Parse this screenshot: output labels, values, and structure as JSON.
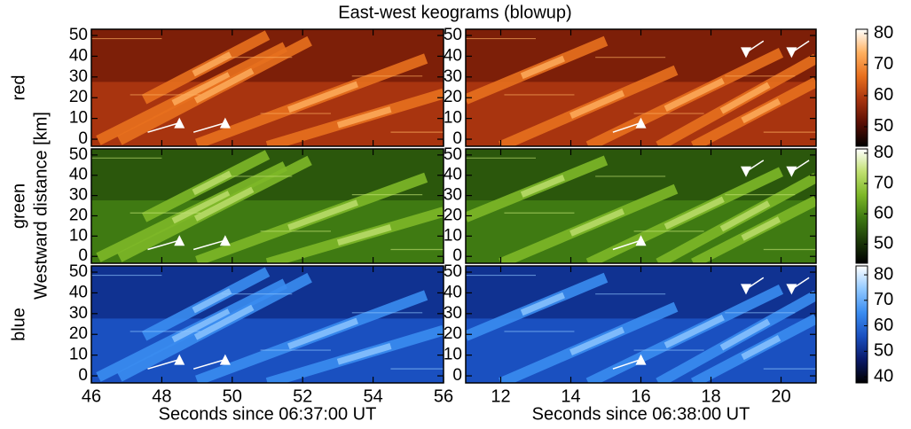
{
  "title": "East-west keograms (blowup)",
  "ylabel": "Westward distance [km]",
  "chart_data": [
    {
      "type": "keogram",
      "row_label": "red",
      "ylim": [
        -3.4,
        53
      ],
      "yticks": [
        0,
        10,
        20,
        30,
        40,
        50
      ]
    },
    {
      "type": "keogram",
      "ylim": [
        -3.4,
        53
      ],
      "yticks": [
        0,
        10,
        20,
        30,
        40,
        50
      ],
      "colorbar": {
        "lim": [
          43.7,
          81.4
        ],
        "ticks": [
          50,
          60,
          70,
          80
        ],
        "colormap": [
          "#000000",
          "#5a0e04",
          "#a8340f",
          "#e8701e",
          "#ffb060",
          "#ffffff"
        ]
      }
    },
    {
      "type": "keogram",
      "row_label": "green",
      "ylim": [
        -3.4,
        53
      ],
      "yticks": [
        0,
        10,
        20,
        30,
        40,
        50
      ]
    },
    {
      "type": "keogram",
      "ylim": [
        -3.4,
        53
      ],
      "yticks": [
        0,
        10,
        20,
        30,
        40,
        50
      ],
      "colorbar": {
        "lim": [
          43.7,
          81.4
        ],
        "ticks": [
          50,
          60,
          70,
          80
        ],
        "colormap": [
          "#000000",
          "#1c3a08",
          "#3f7a12",
          "#7eb828",
          "#c0e070",
          "#ffffff"
        ]
      }
    },
    {
      "type": "keogram",
      "row_label": "blue",
      "ylim": [
        -3.4,
        53
      ],
      "yticks": [
        0,
        10,
        20,
        30,
        40,
        50
      ],
      "xlim": [
        46,
        56
      ],
      "xticks": [
        46,
        48,
        50,
        52,
        54,
        56
      ],
      "xlabel": "Seconds since 06:37:00 UT"
    },
    {
      "type": "keogram",
      "ylim": [
        -3.4,
        53
      ],
      "yticks": [
        0,
        10,
        20,
        30,
        40,
        50
      ],
      "xlim": [
        11,
        21
      ],
      "xticks": [
        12,
        14,
        16,
        18,
        20
      ],
      "xlabel": "Seconds since 06:38:00 UT",
      "colorbar": {
        "lim": [
          37.6,
          83.5
        ],
        "ticks": [
          40,
          50,
          60,
          70,
          80
        ],
        "colormap": [
          "#000000",
          "#0a1a6a",
          "#1a50c0",
          "#3a8cf0",
          "#90c8ff",
          "#ffffff"
        ]
      }
    }
  ]
}
